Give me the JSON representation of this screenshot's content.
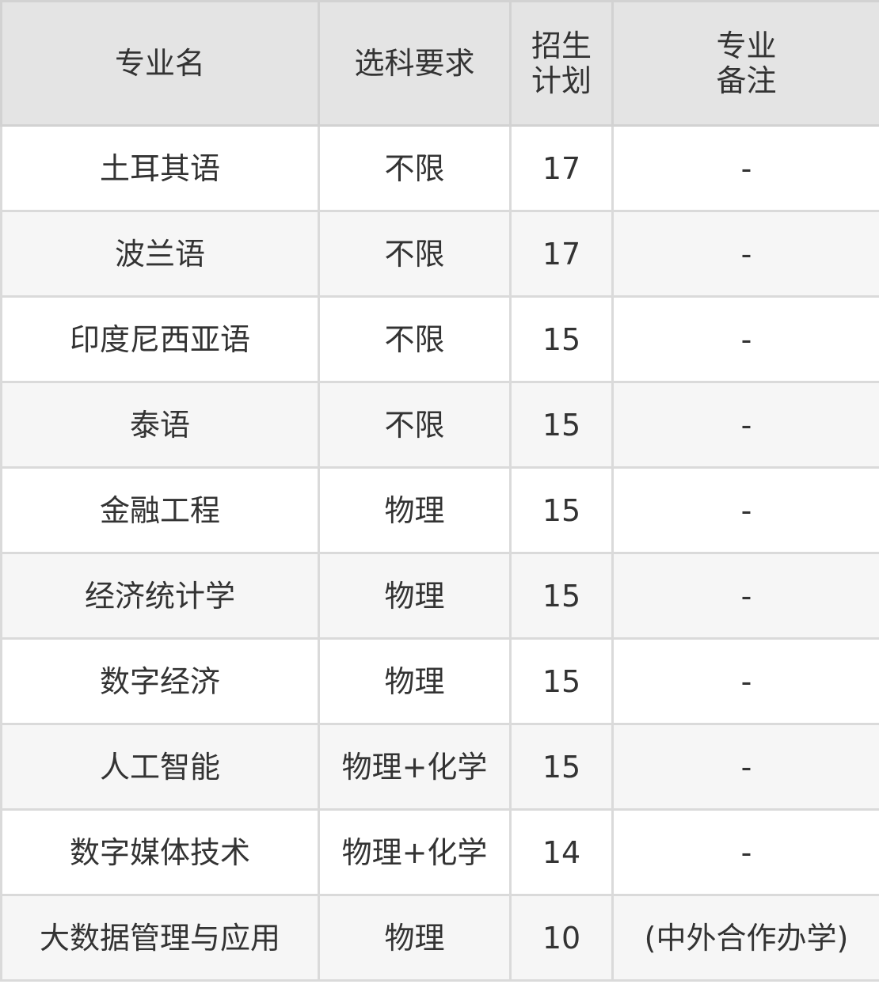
{
  "table": {
    "headers": [
      "专业名",
      "选科要求",
      "招生\n计划",
      "专业\n备注"
    ],
    "rows": [
      [
        "土耳其语",
        "不限",
        "17",
        "-"
      ],
      [
        "波兰语",
        "不限",
        "17",
        "-"
      ],
      [
        "印度尼西亚语",
        "不限",
        "15",
        "-"
      ],
      [
        "泰语",
        "不限",
        "15",
        "-"
      ],
      [
        "金融工程",
        "物理",
        "15",
        "-"
      ],
      [
        "经济统计学",
        "物理",
        "15",
        "-"
      ],
      [
        "数字经济",
        "物理",
        "15",
        "-"
      ],
      [
        "人工智能",
        "物理+化学",
        "15",
        "-"
      ],
      [
        "数字媒体技术",
        "物理+化学",
        "14",
        "-"
      ],
      [
        "大数据管理与应用",
        "物理",
        "10",
        "(中外合作办学)"
      ]
    ]
  },
  "colors": {
    "header_bg": "#e4e4e4",
    "alt_row_bg": "#f6f6f6",
    "border": "#dadada",
    "text": "#333333"
  }
}
